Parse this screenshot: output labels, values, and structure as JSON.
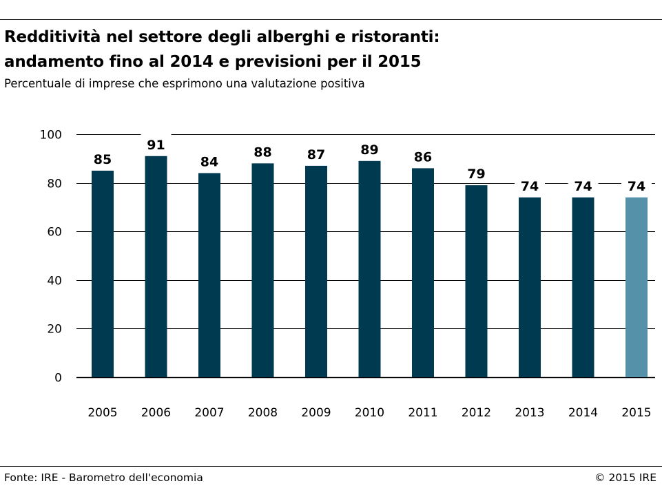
{
  "header": {
    "title_line1": "Redditività nel settore degli alberghi e ristoranti:",
    "title_line2": "andamento fino al 2014 e previsioni per il 2015",
    "subtitle": "Percentuale di imprese che esprimono una valutazione positiva"
  },
  "footer": {
    "source": "Fonte: IRE - Barometro dell'economia",
    "copyright": "© 2015 IRE"
  },
  "colors": {
    "actual": "#003a50",
    "forecast": "#5591a8",
    "grid": "#000000"
  },
  "chart_data": {
    "type": "bar",
    "title": "Redditività nel settore degli alberghi e ristoranti: andamento fino al 2014 e previsioni per il 2015",
    "subtitle": "Percentuale di imprese che esprimono una valutazione positiva",
    "categories": [
      "2005",
      "2006",
      "2007",
      "2008",
      "2009",
      "2010",
      "2011",
      "2012",
      "2013",
      "2014",
      "2015"
    ],
    "values": [
      85,
      91,
      84,
      88,
      87,
      89,
      86,
      79,
      74,
      74,
      74
    ],
    "data_labels": [
      "85",
      "91",
      "84",
      "88",
      "87",
      "89",
      "86",
      "79",
      "74",
      "74",
      "74"
    ],
    "forecast": [
      false,
      false,
      false,
      false,
      false,
      false,
      false,
      false,
      false,
      false,
      true
    ],
    "ylim": [
      0,
      100
    ],
    "yticks": [
      0,
      20,
      40,
      60,
      80,
      100
    ],
    "ytick_labels": [
      "0",
      "20",
      "40",
      "60",
      "80",
      "100"
    ],
    "xlabel": "",
    "ylabel": "",
    "grid": true
  }
}
